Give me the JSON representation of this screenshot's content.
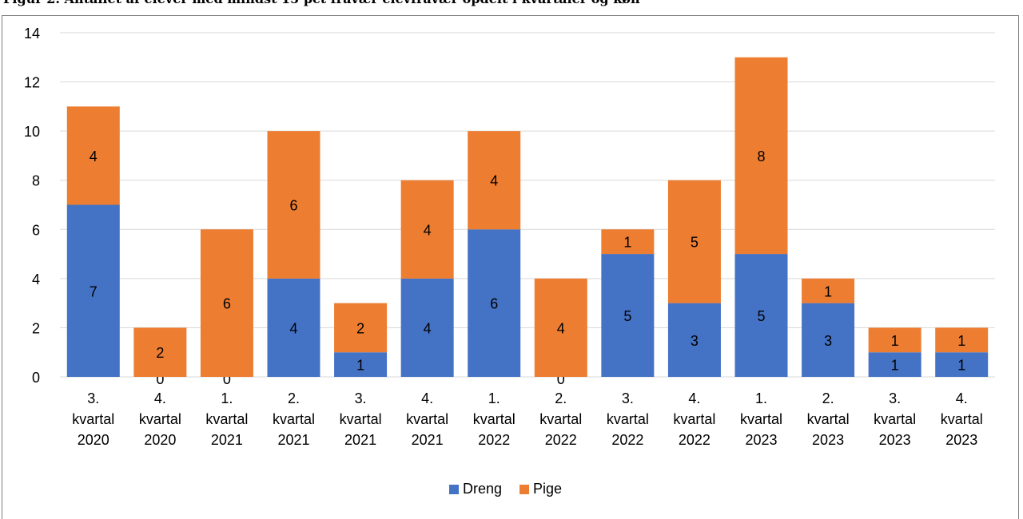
{
  "title": "Figur 2. Antallet af elever med mindst 15 pct fravær elevfravær opdelt i kvartaler og køn",
  "chart_data": {
    "type": "bar",
    "stacked": true,
    "categories": [
      [
        "3.",
        "kvartal",
        "2020"
      ],
      [
        "4.",
        "kvartal",
        "2020"
      ],
      [
        "1.",
        "kvartal",
        "2021"
      ],
      [
        "2.",
        "kvartal",
        "2021"
      ],
      [
        "3.",
        "kvartal",
        "2021"
      ],
      [
        "4.",
        "kvartal",
        "2021"
      ],
      [
        "1.",
        "kvartal",
        "2022"
      ],
      [
        "2.",
        "kvartal",
        "2022"
      ],
      [
        "3.",
        "kvartal",
        "2022"
      ],
      [
        "4.",
        "kvartal",
        "2022"
      ],
      [
        "1.",
        "kvartal",
        "2023"
      ],
      [
        "2.",
        "kvartal",
        "2023"
      ],
      [
        "3.",
        "kvartal",
        "2023"
      ],
      [
        "4.",
        "kvartal",
        "2023"
      ]
    ],
    "series": [
      {
        "name": "Dreng",
        "color": "#4472c4",
        "values": [
          7,
          0,
          0,
          4,
          1,
          4,
          6,
          0,
          5,
          3,
          5,
          3,
          1,
          1
        ]
      },
      {
        "name": "Pige",
        "color": "#ed7d31",
        "values": [
          4,
          2,
          6,
          6,
          2,
          4,
          4,
          4,
          1,
          5,
          8,
          1,
          1,
          1
        ]
      }
    ],
    "ylim": [
      0,
      14
    ],
    "yticks": [
      0,
      2,
      4,
      6,
      8,
      10,
      12,
      14
    ],
    "grid": true,
    "legend": "bottom-center",
    "data_labels": true
  }
}
